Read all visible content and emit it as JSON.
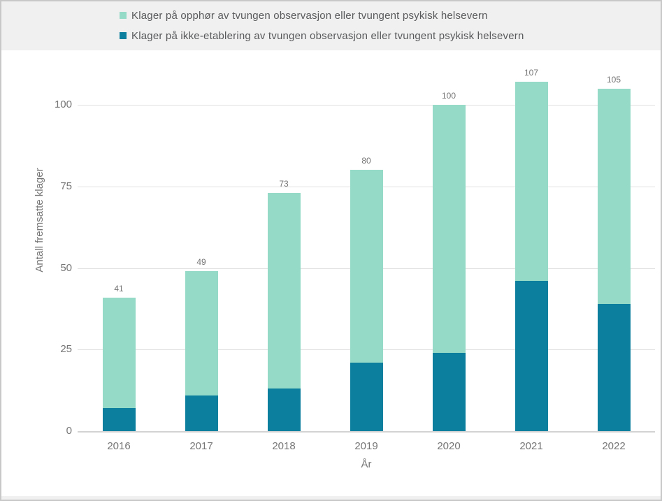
{
  "legend": {
    "items": [
      {
        "label": "Klager på opphør av tvungen observasjon eller tvungent psykisk helsevern",
        "color": "#95DAC6"
      },
      {
        "label": "Klager på ikke-etablering av tvungen observasjon eller tvungent psykisk helsevern",
        "color": "#0C7F9F"
      }
    ]
  },
  "chart_data": {
    "type": "bar",
    "stacked": true,
    "title": "",
    "xlabel": "År",
    "ylabel": "Antall fremsatte klager",
    "categories": [
      "2016",
      "2017",
      "2018",
      "2019",
      "2020",
      "2021",
      "2022"
    ],
    "series": [
      {
        "name": "Klager på ikke-etablering av tvungen observasjon eller tvungent psykisk helsevern",
        "color": "#0C7F9F",
        "values": [
          7,
          11,
          13,
          21,
          24,
          46,
          39
        ]
      },
      {
        "name": "Klager på opphør av tvungen observasjon eller tvungent psykisk helsevern",
        "color": "#95DAC6",
        "values": [
          34,
          38,
          60,
          59,
          76,
          61,
          66
        ]
      }
    ],
    "totals": [
      41,
      49,
      73,
      80,
      100,
      107,
      105
    ],
    "ylim": [
      0,
      100
    ],
    "yticks": [
      0,
      25,
      50,
      75,
      100
    ],
    "grid": true,
    "legend_position": "top"
  },
  "colors": {
    "page_bg": "#F0F0F0",
    "panel_bg": "#FFFFFF",
    "border": "#C8C8C8",
    "gridline": "#E0E0E0",
    "axis_line": "#D3D3D3",
    "axis_text": "#757575",
    "legend_text": "#58595B",
    "value_label_text": "#757575"
  }
}
